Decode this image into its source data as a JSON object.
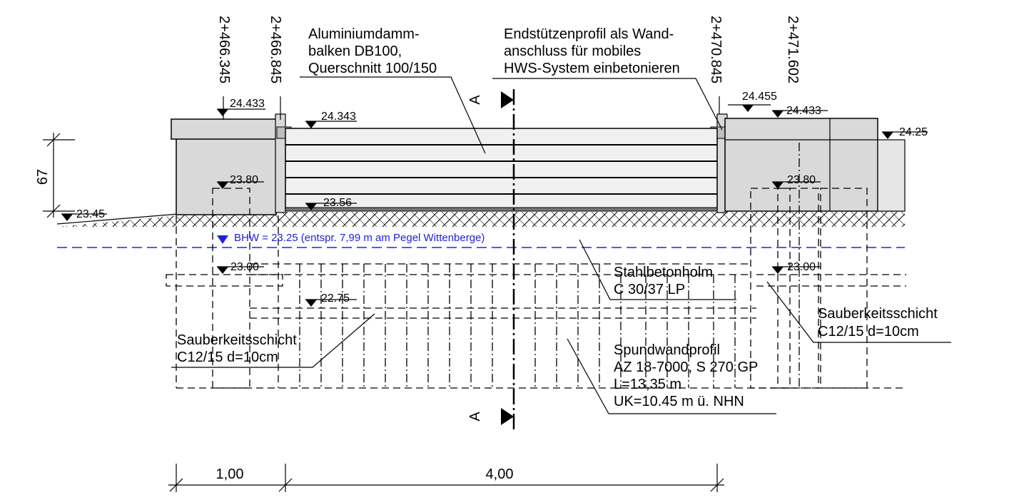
{
  "stations": [
    "2+466.345",
    "2+466.845",
    "2+470.845",
    "2+471.602"
  ],
  "elevations": {
    "top_left": "24.433",
    "top_right": "24.433",
    "beam_top": "24.343",
    "post_top": "24.455",
    "far_right": "24.25",
    "inner_left": "23.80",
    "inner_right": "23.80",
    "beam_bottom": "23.56",
    "ground_left": "23.45",
    "found_left": "23.00",
    "found_right": "23.00",
    "blinding": "22.75"
  },
  "bhw": "BHW = 23.25 (entspr. 7,99 m am Pegel Wittenberge)",
  "labels": {
    "beam": [
      "Aluminiumdamm-",
      "balken DB100,",
      "Querschnitt 100/150"
    ],
    "post": [
      "Endstützenprofil als Wand-",
      "anschluss für mobiles",
      "HWS-System einbetonieren"
    ],
    "holm": [
      "Stahlbetonholm",
      "C 30/37 LP"
    ],
    "sauber_right": [
      "Sauberkeitsschicht",
      "C12/15 d=10cm"
    ],
    "sauber_left": [
      "Sauberkeitsschicht",
      "C12/15 d=10cm"
    ],
    "spund": [
      "Spundwandprofil",
      "AZ 18-7000, S 270 GP",
      "L=13,35 m",
      "UK=10.45 m ü. NHN"
    ]
  },
  "section_mark": "A",
  "dims": {
    "height": "67",
    "width_left": "1,00",
    "width_main": "4,00"
  },
  "colors": {
    "concrete": "#d9d9d9",
    "beam_fill": "#f0f0f0",
    "water_line": "#2020e0"
  }
}
